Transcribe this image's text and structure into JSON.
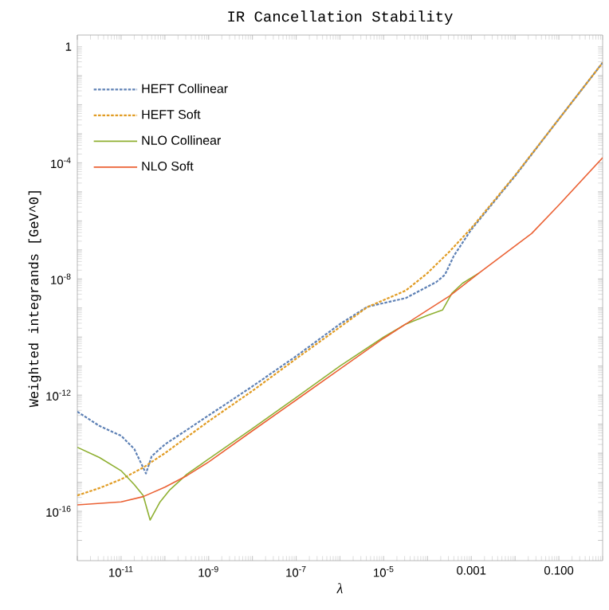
{
  "chart_data": {
    "type": "line",
    "title": "IR Cancellation Stability",
    "xlabel": "λ",
    "ylabel": "Weighted integrands [GeV^0]",
    "log": "xy",
    "xlim": [
      1e-12,
      1
    ],
    "ylim": [
      2e-18,
      2.5
    ],
    "xticks": [
      {
        "value": 1e-12,
        "label": null
      },
      {
        "value": 1e-11,
        "label": "10$^{-11}$"
      },
      {
        "value": 1e-10,
        "label": null
      },
      {
        "value": 1e-09,
        "label": "10$^{-9}$"
      },
      {
        "value": 1e-08,
        "label": null
      },
      {
        "value": 1e-07,
        "label": "10$^{-7}$"
      },
      {
        "value": 1e-06,
        "label": null
      },
      {
        "value": 1e-05,
        "label": "10$^{-5}$"
      },
      {
        "value": 0.0001,
        "label": null
      },
      {
        "value": 0.001,
        "label": "0.001"
      },
      {
        "value": 0.01,
        "label": null
      },
      {
        "value": 0.1,
        "label": "0.100"
      },
      {
        "value": 1,
        "label": null
      }
    ],
    "yticks": [
      {
        "value": 1e-17,
        "label": null
      },
      {
        "value": 1e-16,
        "label": "10$^{-16}$"
      },
      {
        "value": 1e-15,
        "label": null
      },
      {
        "value": 1e-14,
        "label": null
      },
      {
        "value": 1e-13,
        "label": null
      },
      {
        "value": 1e-12,
        "label": "10$^{-12}$"
      },
      {
        "value": 1e-11,
        "label": null
      },
      {
        "value": 1e-10,
        "label": null
      },
      {
        "value": 1e-09,
        "label": null
      },
      {
        "value": 1e-08,
        "label": "10$^{-8}$"
      },
      {
        "value": 1e-07,
        "label": null
      },
      {
        "value": 1e-06,
        "label": null
      },
      {
        "value": 1e-05,
        "label": null
      },
      {
        "value": 0.0001,
        "label": "10$^{-4}$"
      },
      {
        "value": 0.001,
        "label": null
      },
      {
        "value": 0.01,
        "label": null
      },
      {
        "value": 0.1,
        "label": null
      },
      {
        "value": 1,
        "label": "1"
      }
    ],
    "legend": "top left",
    "grid": false,
    "series": [
      {
        "name": "HEFT Collinear",
        "color": "#5e81b5",
        "line_style": "dashed",
        "x": [
          1e-12,
          3.2e-12,
          1e-11,
          2e-11,
          3.7e-11,
          5e-11,
          1e-10,
          1e-09,
          1e-08,
          1e-07,
          1e-06,
          4.2e-06,
          3.2e-05,
          0.00016,
          0.00025,
          0.0004,
          0.001,
          0.01,
          0.1,
          1
        ],
        "values": [
          2.7e-13,
          8.7e-14,
          4e-14,
          1.4e-14,
          2e-15,
          7.9e-15,
          2e-14,
          2e-13,
          2e-12,
          2.2e-11,
          2.8e-10,
          1.1e-09,
          2.2e-09,
          7.9e-09,
          1.4e-08,
          6.3e-08,
          5e-07,
          3.5e-05,
          0.0032,
          0.28
        ]
      },
      {
        "name": "HEFT Soft",
        "color": "#e19c24",
        "line_style": "dashed",
        "x": [
          1e-12,
          3.2e-12,
          1e-11,
          3.2e-11,
          1e-10,
          1e-09,
          1e-08,
          1e-07,
          1e-06,
          4.2e-06,
          3.2e-05,
          0.0001,
          0.00032,
          0.001,
          0.01,
          0.1,
          1
        ],
        "values": [
          3.5e-16,
          6.3e-16,
          1.26e-15,
          3.2e-15,
          1e-14,
          1.26e-13,
          1.4e-12,
          1.8e-11,
          2.2e-10,
          1.07e-09,
          4e-09,
          1.6e-08,
          8.9e-08,
          5.6e-07,
          3.7e-05,
          0.0032,
          0.28
        ]
      },
      {
        "name": "NLO Collinear",
        "color": "#8fb032",
        "line_style": "solid",
        "x": [
          1e-12,
          3.2e-12,
          1e-11,
          2e-11,
          3.2e-11,
          4.6e-11,
          7.6e-11,
          1.3e-10,
          3.2e-10,
          1e-09,
          1e-08,
          1e-07,
          1e-06,
          1e-05,
          3.2e-05,
          0.0001,
          0.00022,
          0.00036,
          0.00063,
          0.0015
        ],
        "values": [
          1.6e-14,
          7.1e-15,
          2.5e-15,
          8.3e-16,
          3.5e-16,
          5e-17,
          2e-16,
          5.5e-16,
          1.9e-15,
          6.3e-15,
          7.1e-14,
          8.3e-13,
          1e-11,
          1e-10,
          2.8e-10,
          5.6e-10,
          8.5e-10,
          3.2e-09,
          7.1e-09,
          1.6e-08
        ]
      },
      {
        "name": "NLO Soft",
        "color": "#eb6235",
        "line_style": "solid",
        "x": [
          1e-12,
          1e-11,
          3.2e-11,
          1e-10,
          3.2e-10,
          1e-09,
          1e-08,
          1e-07,
          1e-06,
          1e-05,
          0.0001,
          0.00032,
          0.0015,
          0.024,
          0.1,
          1
        ],
        "values": [
          1.66e-16,
          2.1e-16,
          3.2e-16,
          6.8e-16,
          1.7e-15,
          5e-15,
          5.9e-14,
          6.8e-13,
          7.9e-12,
          9.1e-11,
          8.5e-10,
          2.6e-09,
          1.6e-08,
          3.7e-07,
          3.5e-06,
          0.00015
        ]
      }
    ]
  }
}
